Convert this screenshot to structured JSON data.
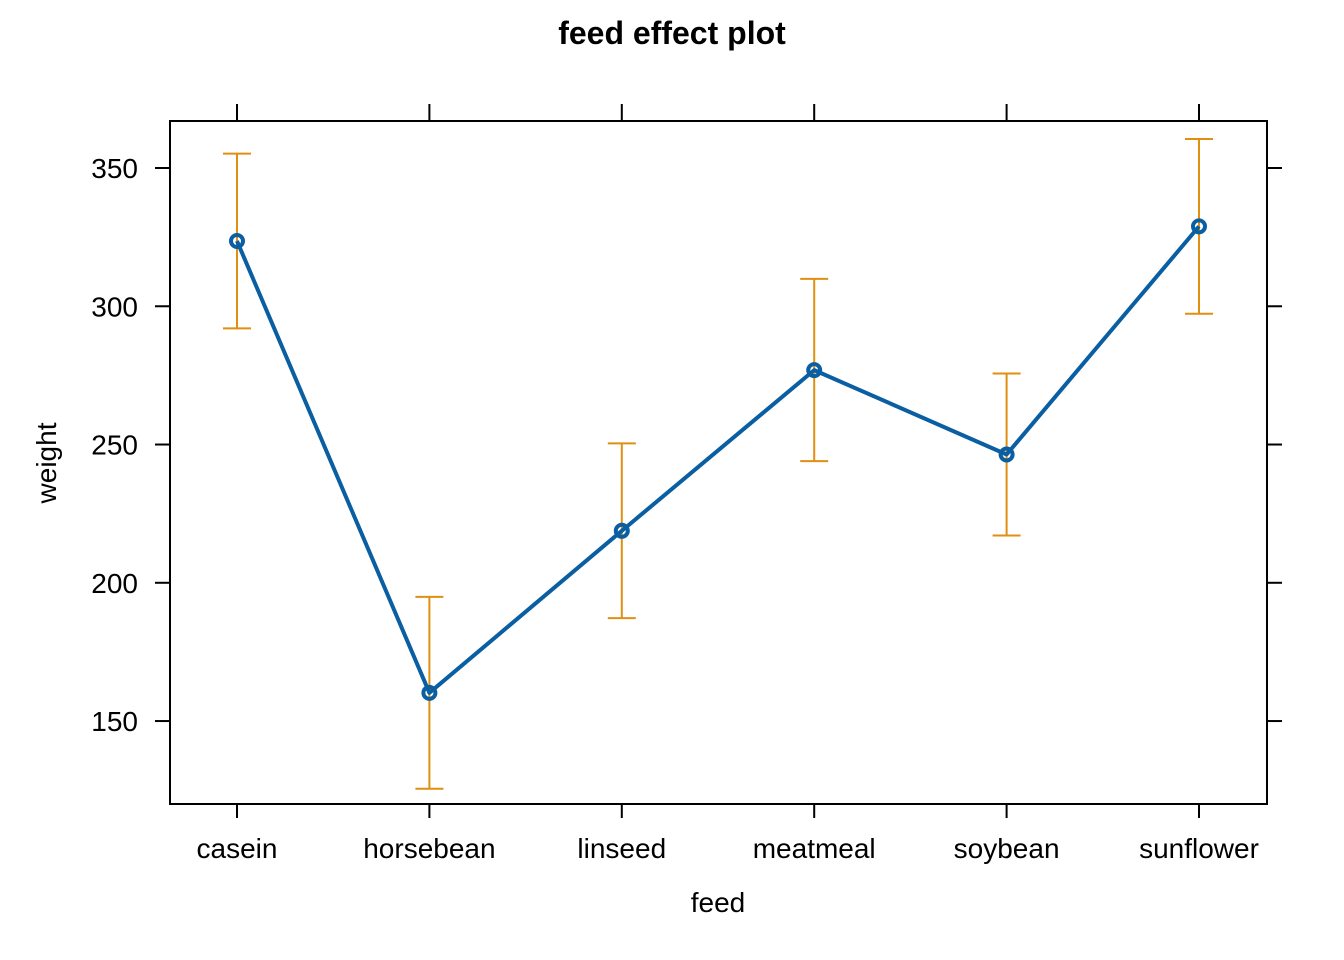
{
  "chart_data": {
    "type": "line",
    "title": "feed effect plot",
    "xlabel": "feed",
    "ylabel": "weight",
    "categories": [
      "casein",
      "horsebean",
      "linseed",
      "meatmeal",
      "soybean",
      "sunflower"
    ],
    "series": [
      {
        "values": [
          323.6,
          160.2,
          218.8,
          276.9,
          246.4,
          328.9
        ],
        "lower": [
          292.0,
          125.5,
          187.2,
          244.0,
          217.1,
          297.3
        ],
        "upper": [
          355.2,
          194.9,
          250.4,
          309.9,
          275.7,
          360.5
        ],
        "color": "#0a5ea2",
        "ci_color": "#e08f10"
      }
    ],
    "ylim": [
      120.0,
      367.0
    ],
    "yticks": [
      150,
      200,
      250,
      300,
      350
    ],
    "grid": false,
    "colors": {
      "line": "#0a5ea2",
      "confidence_band": "#e08f10",
      "axis": "#000000"
    }
  }
}
